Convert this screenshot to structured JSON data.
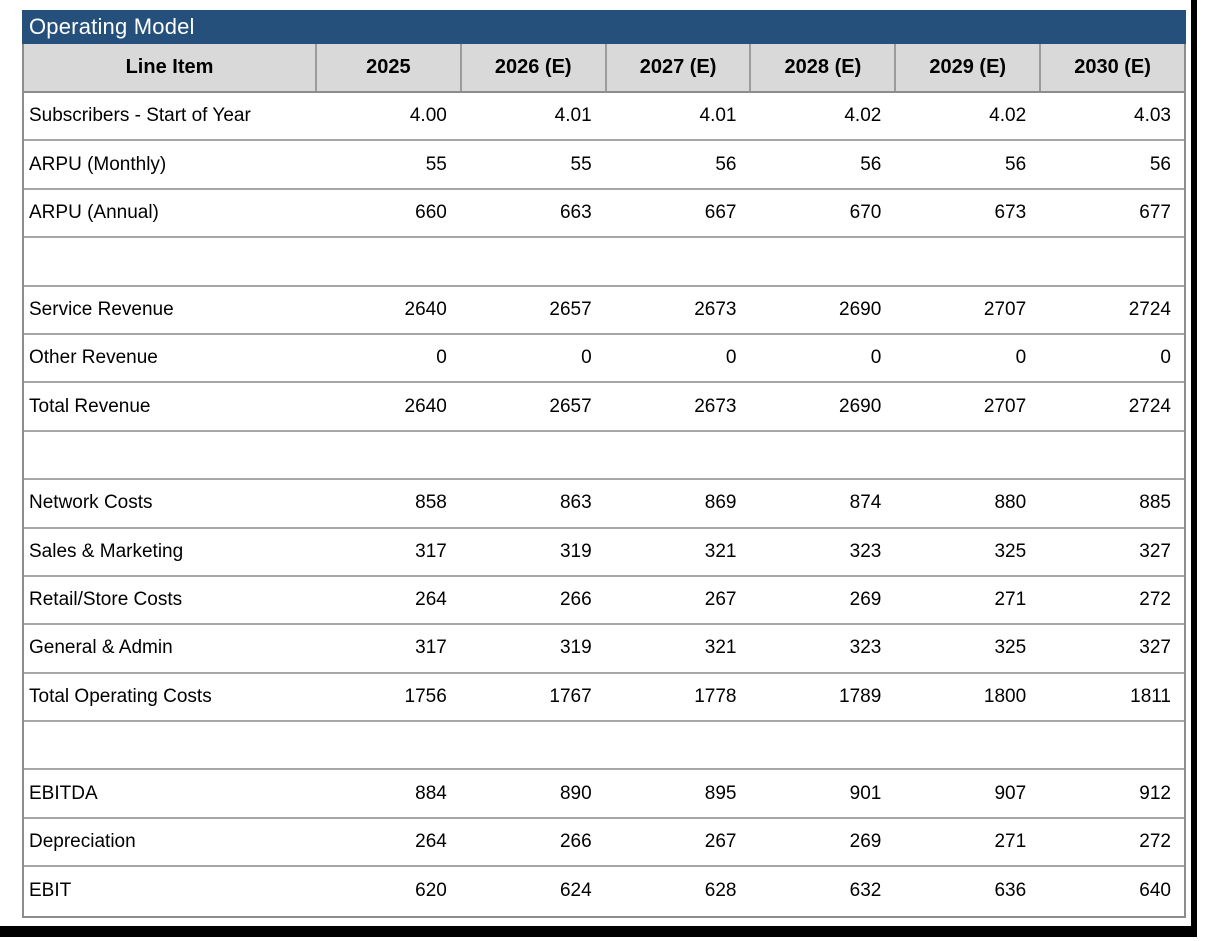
{
  "title": "Operating Model",
  "colors": {
    "title_bg": "#26507C",
    "title_text": "#FFFFFF",
    "header_bg": "#D9D9D9",
    "outer_border": "#8C8C8C",
    "row_divider": "#A6A6A6",
    "text": "#000000",
    "frame_edge": "#000000"
  },
  "chart_data": {
    "type": "table",
    "title": "Operating Model",
    "columns": [
      "Line Item",
      "2025",
      "2026 (E)",
      "2027 (E)",
      "2028 (E)",
      "2029 (E)",
      "2030 (E)"
    ],
    "rows": [
      {
        "label": "Subscribers - Start of Year",
        "values": [
          "4.00",
          "4.01",
          "4.01",
          "4.02",
          "4.02",
          "4.03"
        ],
        "blank": false
      },
      {
        "label": "ARPU (Monthly)",
        "values": [
          "55",
          "55",
          "56",
          "56",
          "56",
          "56"
        ],
        "blank": false
      },
      {
        "label": "ARPU (Annual)",
        "values": [
          "660",
          "663",
          "667",
          "670",
          "673",
          "677"
        ],
        "blank": false
      },
      {
        "label": "",
        "values": [
          "",
          "",
          "",
          "",
          "",
          ""
        ],
        "blank": true
      },
      {
        "label": "Service Revenue",
        "values": [
          "2640",
          "2657",
          "2673",
          "2690",
          "2707",
          "2724"
        ],
        "blank": false
      },
      {
        "label": "Other Revenue",
        "values": [
          "0",
          "0",
          "0",
          "0",
          "0",
          "0"
        ],
        "blank": false
      },
      {
        "label": "Total Revenue",
        "values": [
          "2640",
          "2657",
          "2673",
          "2690",
          "2707",
          "2724"
        ],
        "blank": false
      },
      {
        "label": "",
        "values": [
          "",
          "",
          "",
          "",
          "",
          ""
        ],
        "blank": true
      },
      {
        "label": "Network Costs",
        "values": [
          "858",
          "863",
          "869",
          "874",
          "880",
          "885"
        ],
        "blank": false
      },
      {
        "label": "Sales & Marketing",
        "values": [
          "317",
          "319",
          "321",
          "323",
          "325",
          "327"
        ],
        "blank": false
      },
      {
        "label": "Retail/Store Costs",
        "values": [
          "264",
          "266",
          "267",
          "269",
          "271",
          "272"
        ],
        "blank": false
      },
      {
        "label": "General & Admin",
        "values": [
          "317",
          "319",
          "321",
          "323",
          "325",
          "327"
        ],
        "blank": false
      },
      {
        "label": "Total Operating Costs",
        "values": [
          "1756",
          "1767",
          "1778",
          "1789",
          "1800",
          "1811"
        ],
        "blank": false
      },
      {
        "label": "",
        "values": [
          "",
          "",
          "",
          "",
          "",
          ""
        ],
        "blank": true
      },
      {
        "label": "EBITDA",
        "values": [
          "884",
          "890",
          "895",
          "901",
          "907",
          "912"
        ],
        "blank": false
      },
      {
        "label": "Depreciation",
        "values": [
          "264",
          "266",
          "267",
          "269",
          "271",
          "272"
        ],
        "blank": false
      },
      {
        "label": "EBIT",
        "values": [
          "620",
          "624",
          "628",
          "632",
          "636",
          "640"
        ],
        "blank": false
      }
    ]
  }
}
